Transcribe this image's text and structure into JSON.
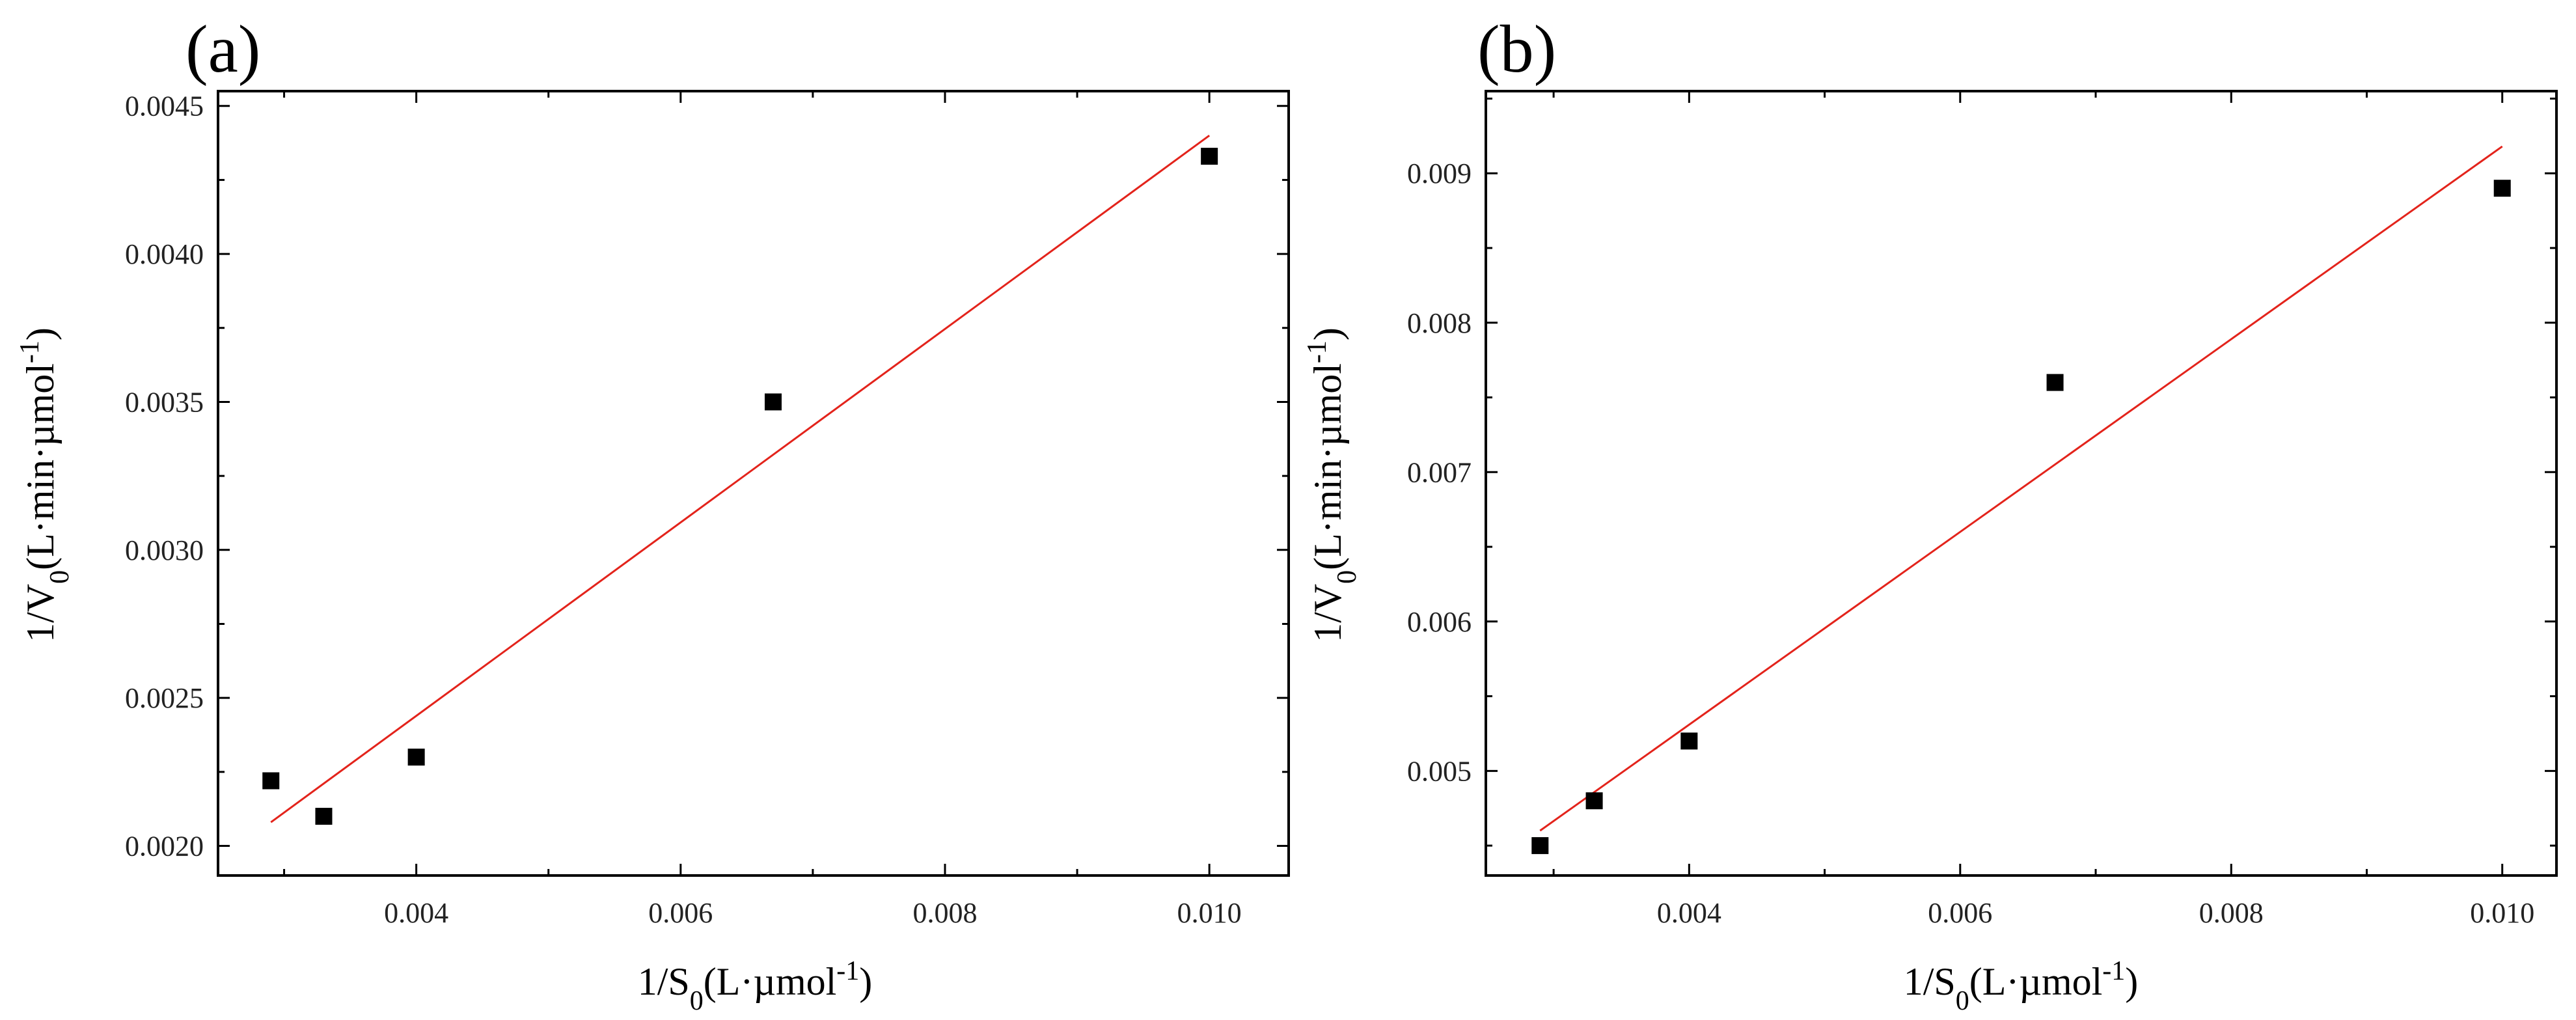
{
  "chart_data": [
    {
      "type": "scatter",
      "panel_label": "(a)",
      "xlabel": {
        "base": "1/S",
        "sub": "0",
        "unit_pre": "(L·µmol",
        "sup": "-1",
        "unit_post": ")"
      },
      "ylabel": {
        "base": "1/V",
        "sub": "0",
        "unit_pre": "(L·min·µmol",
        "sup": "-1",
        "unit_post": ")"
      },
      "xlim": [
        0.0025,
        0.0106
      ],
      "ylim": [
        0.0019,
        0.00455
      ],
      "xticks": [
        0.004,
        0.006,
        0.008,
        0.01
      ],
      "xtick_labels": [
        "0.004",
        "0.006",
        "0.008",
        "0.010"
      ],
      "yticks": [
        0.002,
        0.0025,
        0.003,
        0.0035,
        0.004,
        0.0045
      ],
      "ytick_labels": [
        "0.0020",
        "0.0025",
        "0.0030",
        "0.0035",
        "0.0040",
        "0.0045"
      ],
      "points": {
        "x": [
          0.0029,
          0.0033,
          0.004,
          0.0067,
          0.01
        ],
        "y": [
          0.00222,
          0.0021,
          0.0023,
          0.0035,
          0.00433
        ]
      },
      "fit_line": {
        "x": [
          0.0029,
          0.01
        ],
        "y": [
          0.00208,
          0.0044
        ],
        "color": "#e3231b"
      }
    },
    {
      "type": "scatter",
      "panel_label": "(b)",
      "xlabel": {
        "base": "1/S",
        "sub": "0",
        "unit_pre": "(L·µmol",
        "sup": "-1",
        "unit_post": ")"
      },
      "ylabel": {
        "base": "1/V",
        "sub": "0",
        "unit_pre": "(L·min·µmol",
        "sup": "-1",
        "unit_post": ")"
      },
      "xlim": [
        0.0025,
        0.0104
      ],
      "ylim": [
        0.0043,
        0.00955
      ],
      "xticks": [
        0.004,
        0.006,
        0.008,
        0.01
      ],
      "xtick_labels": [
        "0.004",
        "0.006",
        "0.008",
        "0.010"
      ],
      "yticks": [
        0.005,
        0.006,
        0.007,
        0.008,
        0.009
      ],
      "ytick_labels": [
        "0.005",
        "0.006",
        "0.007",
        "0.008",
        "0.009"
      ],
      "points": {
        "x": [
          0.0029,
          0.0033,
          0.004,
          0.0067,
          0.01
        ],
        "y": [
          0.0045,
          0.0048,
          0.0052,
          0.0076,
          0.0089
        ]
      },
      "fit_line": {
        "x": [
          0.0029,
          0.01
        ],
        "y": [
          0.0046,
          0.00918
        ],
        "color": "#e3231b"
      }
    }
  ]
}
